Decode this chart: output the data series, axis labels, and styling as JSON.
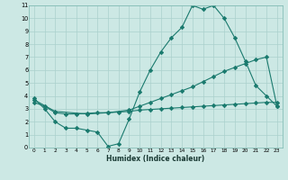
{
  "title": "",
  "xlabel": "Humidex (Indice chaleur)",
  "bg_color": "#cce8e4",
  "grid_color": "#aad0cc",
  "line_color": "#1a7a6e",
  "xlim": [
    -0.5,
    23.5
  ],
  "ylim": [
    0,
    11
  ],
  "xticks": [
    0,
    1,
    2,
    3,
    4,
    5,
    6,
    7,
    8,
    9,
    10,
    11,
    12,
    13,
    14,
    15,
    16,
    17,
    18,
    19,
    20,
    21,
    22,
    23
  ],
  "yticks": [
    0,
    1,
    2,
    3,
    4,
    5,
    6,
    7,
    8,
    9,
    10,
    11
  ],
  "line1_x": [
    0,
    1,
    2,
    3,
    4,
    5,
    6,
    7,
    8,
    9,
    10,
    11,
    12,
    13,
    14,
    15,
    16,
    17,
    18,
    19,
    20,
    21,
    22,
    23
  ],
  "line1_y": [
    3.8,
    3.0,
    2.0,
    1.5,
    1.5,
    1.35,
    1.2,
    0.1,
    0.3,
    2.2,
    4.3,
    6.0,
    7.4,
    8.5,
    9.3,
    11.0,
    10.7,
    11.0,
    10.0,
    8.5,
    6.7,
    4.8,
    4.0,
    3.2
  ],
  "line2_x": [
    0,
    2,
    5,
    7,
    9,
    10,
    11,
    12,
    13,
    14,
    15,
    16,
    17,
    18,
    19,
    20,
    21,
    22,
    23
  ],
  "line2_y": [
    3.7,
    2.8,
    2.6,
    2.7,
    2.9,
    3.2,
    3.5,
    3.8,
    4.1,
    4.4,
    4.7,
    5.1,
    5.5,
    5.9,
    6.2,
    6.5,
    6.8,
    7.0,
    3.2
  ],
  "line3_x": [
    0,
    1,
    2,
    3,
    4,
    5,
    6,
    7,
    8,
    9,
    10,
    11,
    12,
    13,
    14,
    15,
    16,
    17,
    18,
    19,
    20,
    21,
    22,
    23
  ],
  "line3_y": [
    3.5,
    3.2,
    2.7,
    2.6,
    2.6,
    2.65,
    2.7,
    2.7,
    2.75,
    2.8,
    2.9,
    2.95,
    3.0,
    3.05,
    3.1,
    3.15,
    3.2,
    3.25,
    3.3,
    3.35,
    3.4,
    3.45,
    3.5,
    3.5
  ]
}
